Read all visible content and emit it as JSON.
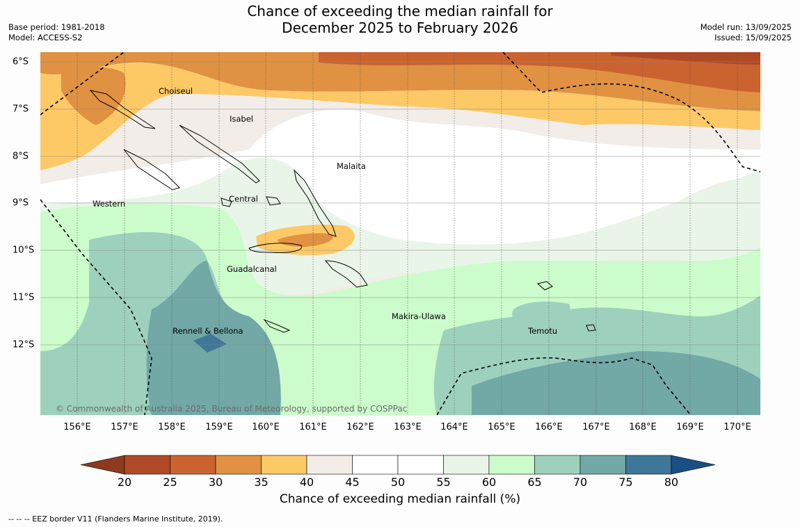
{
  "title": {
    "line1": "Chance of exceeding the median rainfall for",
    "line2": "December 2025 to February 2026"
  },
  "meta_left": {
    "base_period": "Base period: 1981-2018",
    "model": "Model: ACCESS-S2"
  },
  "meta_right": {
    "model_run": "Model run: 13/09/2025",
    "issued": "Issued: 15/09/2025"
  },
  "map": {
    "lon_labels": [
      "156°E",
      "157°E",
      "158°E",
      "159°E",
      "160°E",
      "161°E",
      "162°E",
      "163°E",
      "164°E",
      "165°E",
      "166°E",
      "167°E",
      "168°E",
      "169°E",
      "170°E"
    ],
    "lat_labels": [
      "6°S",
      "7°S",
      "8°S",
      "9°S",
      "10°S",
      "11°S",
      "12°S"
    ],
    "regions": [
      "Choiseul",
      "Isabel",
      "Malaita",
      "Central",
      "Western",
      "Guadalcanal",
      "Makira-Ulawa",
      "Temotu",
      "Rennell & Bellona"
    ],
    "copyright": "© Commonwealth of Australia 2025, Bureau of Meteorology, supported by COSPPac"
  },
  "colorbar": {
    "ticks": [
      "20",
      "25",
      "30",
      "35",
      "40",
      "45",
      "50",
      "55",
      "60",
      "65",
      "70",
      "75",
      "80"
    ],
    "colors": [
      "#b04a26",
      "#ca632f",
      "#e09142",
      "#fdc966",
      "#f2ede8",
      "#ffffff",
      "#ffffff",
      "#eaf5ea",
      "#ccfccc",
      "#9ed1bd",
      "#72a8a6",
      "#3f7799"
    ],
    "under_color": "#8e3a1f",
    "over_color": "#1a4f82",
    "label": "Chance of exceeding median rainfall (%)"
  },
  "footer": "-- -- -- EEZ border V11 (Flanders Marine Institute, 2019)."
}
